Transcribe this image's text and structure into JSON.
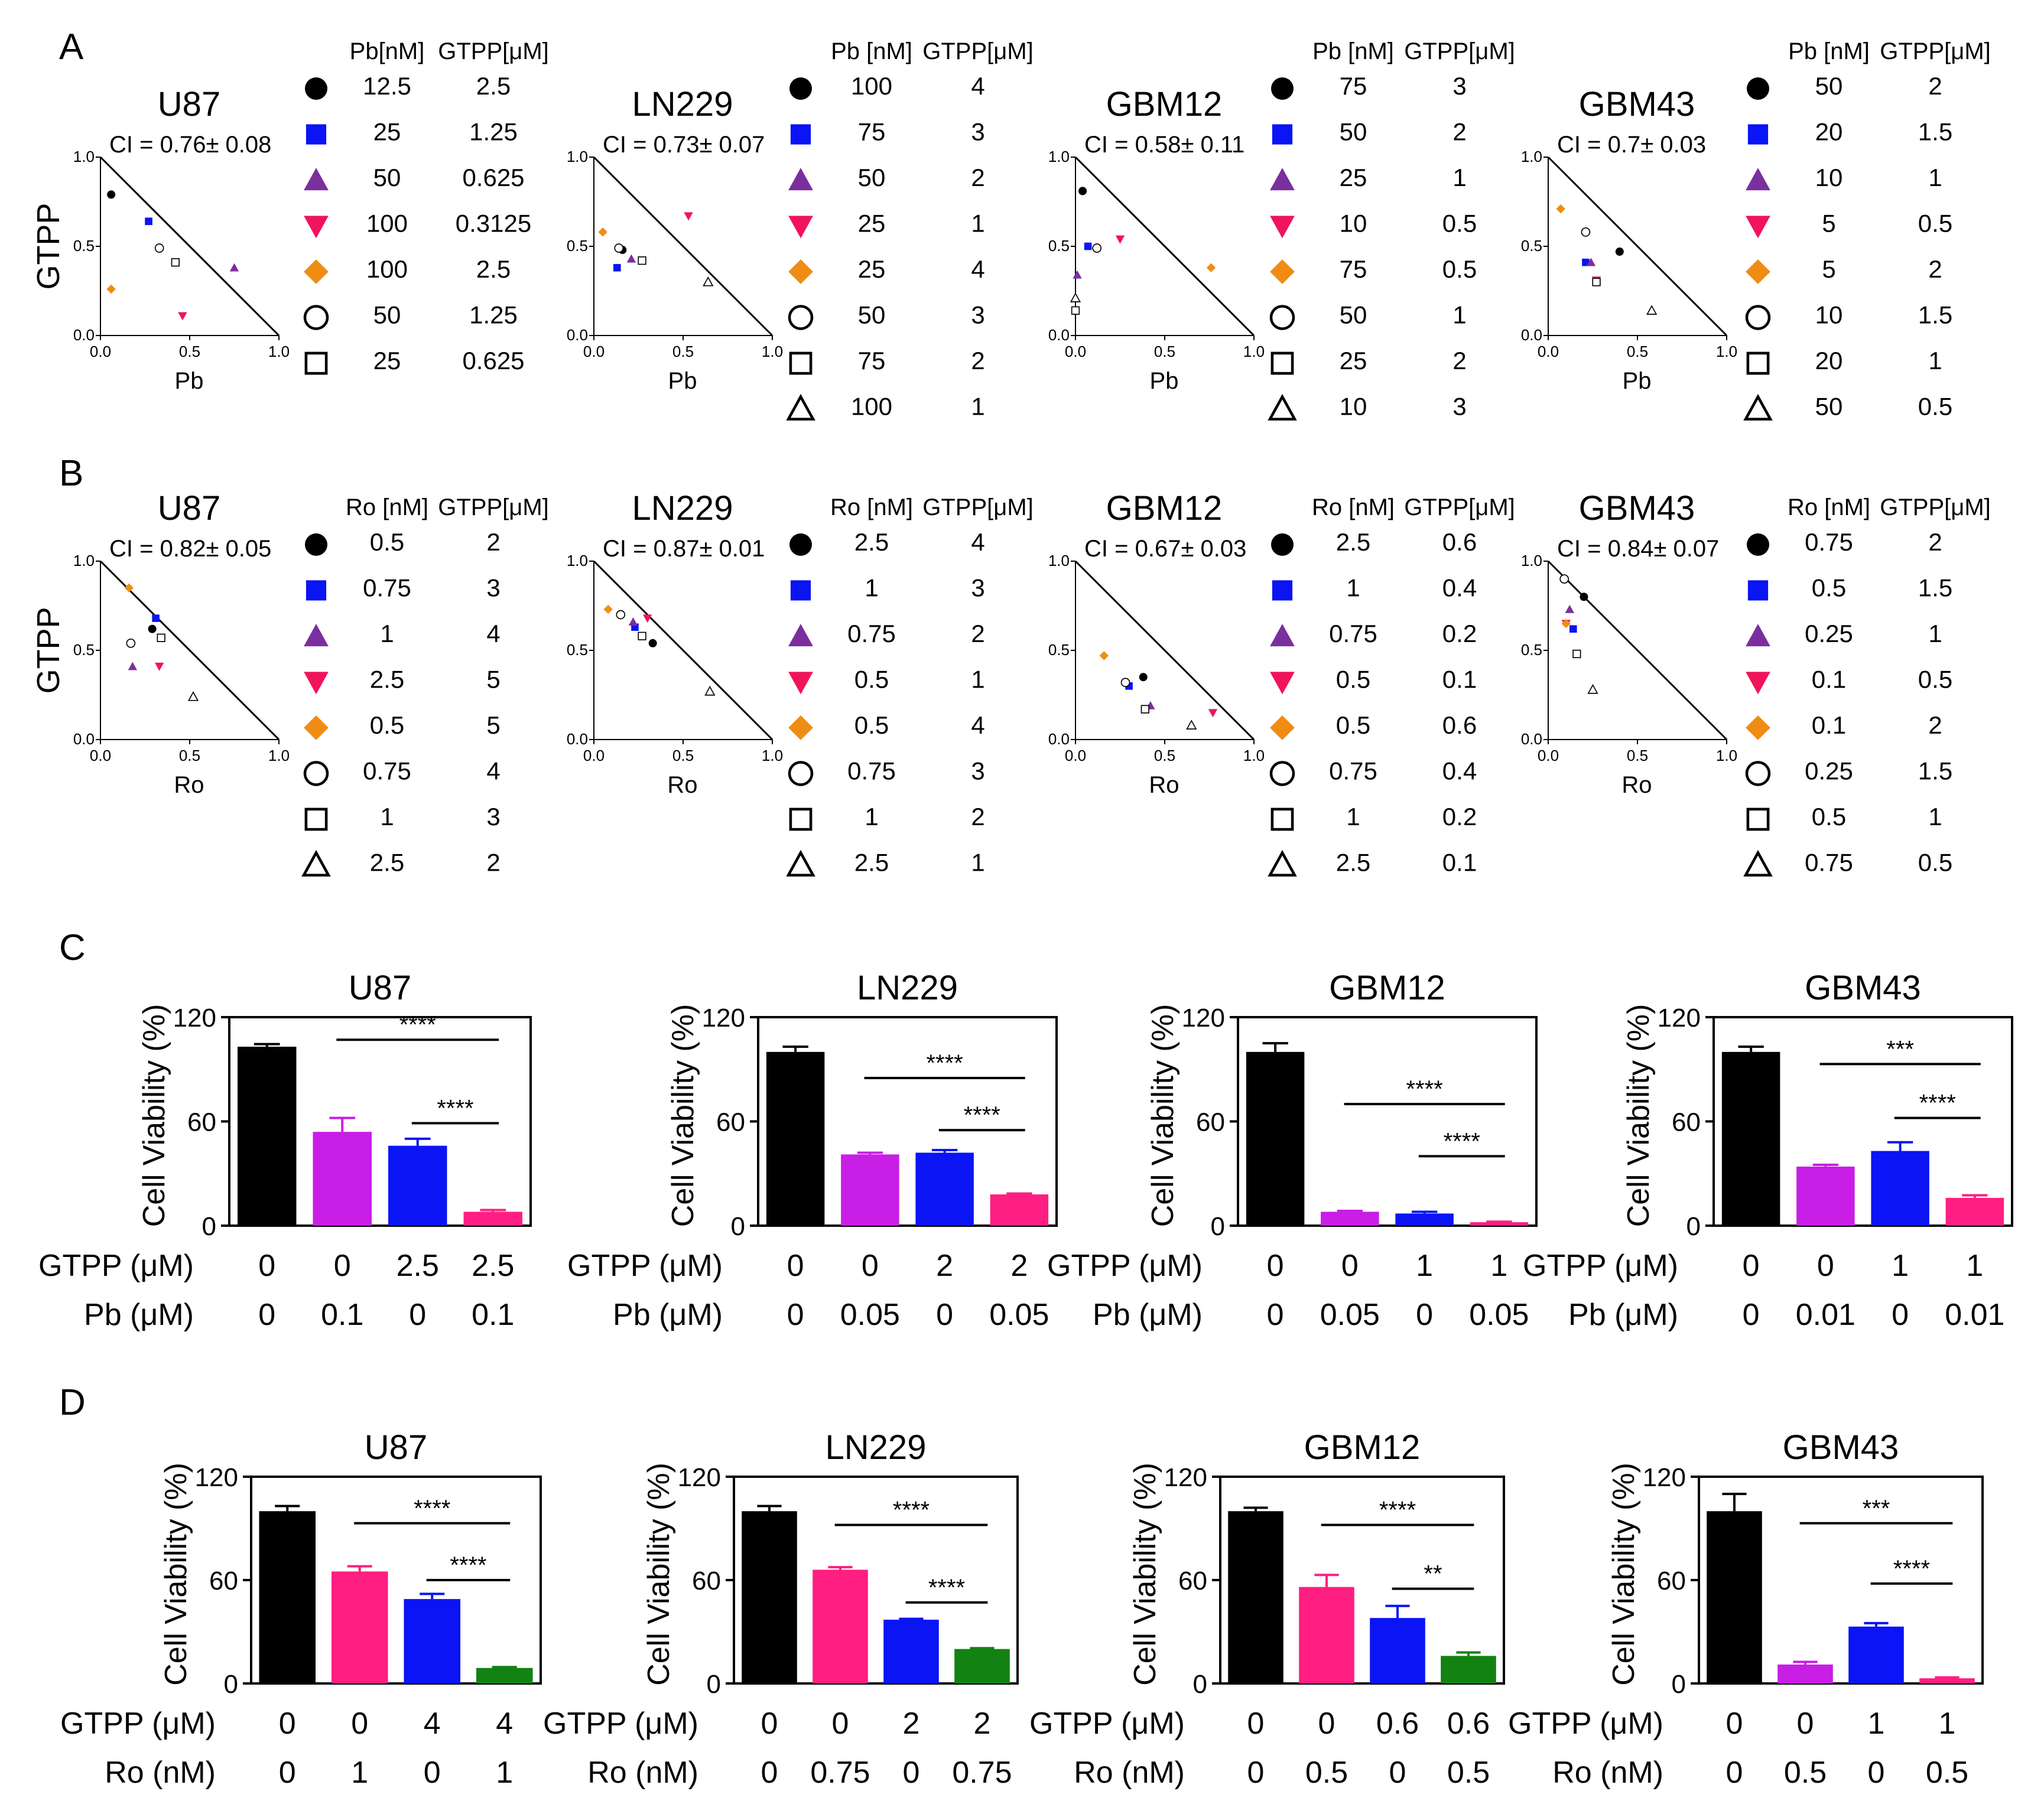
{
  "colors": {
    "black": "#000000",
    "blue": "#0a14f5",
    "purple": "#7b2f9e",
    "red": "#f0145a",
    "orange": "#f08c14",
    "magenta": "#c81ee6",
    "pink": "#ff1e82",
    "green": "#128212",
    "axis": "#000000"
  },
  "panels": {
    "A": "A",
    "B": "B",
    "C": "C",
    "D": "D"
  },
  "iso_axes": {
    "ticks": [
      "0.0",
      "0.5",
      "1.0"
    ],
    "ylabel": "GTPP",
    "xlabel_pb": "Pb",
    "xlabel_ro": "Ro"
  },
  "table_headers": {
    "pb_styles": [
      "Pb[nM]",
      "Pb [nM]",
      "Pb [nM]",
      "Pb [nM]"
    ],
    "ro": "Ro [nM]",
    "gtpp": "GTPP[μM]"
  },
  "marker_order": [
    "circle-filled",
    "square-filled",
    "triangle-up-filled",
    "triangle-down-filled",
    "diamond-filled",
    "circle-open",
    "square-open",
    "triangle-open"
  ],
  "chart_data": [
    {
      "type": "scatter",
      "panel": "A",
      "title": "U87",
      "ci": "CI = 0.76± 0.08",
      "xlabel": "Pb",
      "ylabel": "GTPP",
      "xlim": [
        0,
        1
      ],
      "ylim": [
        0,
        1
      ],
      "table": {
        "d1": [
          "12.5",
          "25",
          "50",
          "100",
          "100",
          "50",
          "25"
        ],
        "d2": [
          "2.5",
          "1.25",
          "0.625",
          "0.3125",
          "2.5",
          "1.25",
          "0.625"
        ]
      },
      "points": [
        [
          0.06,
          0.79
        ],
        [
          0.27,
          0.64
        ],
        [
          0.75,
          0.38
        ],
        [
          0.46,
          0.11
        ],
        [
          0.06,
          0.26
        ],
        [
          0.33,
          0.49
        ],
        [
          0.42,
          0.41
        ]
      ]
    },
    {
      "type": "scatter",
      "panel": "A",
      "title": "LN229",
      "ci": "CI = 0.73± 0.07",
      "xlabel": "Pb",
      "ylabel": "GTPP",
      "xlim": [
        0,
        1
      ],
      "ylim": [
        0,
        1
      ],
      "table": {
        "d1": [
          "100",
          "75",
          "50",
          "25",
          "25",
          "50",
          "75",
          "100"
        ],
        "d2": [
          "4",
          "3",
          "2",
          "1",
          "4",
          "3",
          "2",
          "1"
        ]
      },
      "points": [
        [
          0.16,
          0.48
        ],
        [
          0.13,
          0.38
        ],
        [
          0.21,
          0.43
        ],
        [
          0.53,
          0.67
        ],
        [
          0.05,
          0.58
        ],
        [
          0.14,
          0.49
        ],
        [
          0.27,
          0.42
        ],
        [
          0.64,
          0.3
        ]
      ]
    },
    {
      "type": "scatter",
      "panel": "A",
      "title": "GBM12",
      "ci": "CI = 0.58± 0.11",
      "xlabel": "Pb",
      "ylabel": "GTPP",
      "xlim": [
        0,
        1
      ],
      "ylim": [
        0,
        1
      ],
      "table": {
        "d1": [
          "75",
          "50",
          "25",
          "10",
          "75",
          "50",
          "25",
          "10"
        ],
        "d2": [
          "3",
          "2",
          "1",
          "0.5",
          "0.5",
          "1",
          "2",
          "3"
        ]
      },
      "points": [
        [
          0.04,
          0.81
        ],
        [
          0.07,
          0.5
        ],
        [
          0.01,
          0.34
        ],
        [
          0.25,
          0.54
        ],
        [
          0.76,
          0.38
        ],
        [
          0.12,
          0.49
        ],
        [
          0.0,
          0.14
        ],
        [
          0.0,
          0.21
        ]
      ]
    },
    {
      "type": "scatter",
      "panel": "A",
      "title": "GBM43",
      "ci": "CI = 0.7± 0.03",
      "xlabel": "Pb",
      "ylabel": "GTPP",
      "xlim": [
        0,
        1
      ],
      "ylim": [
        0,
        1
      ],
      "table": {
        "d1": [
          "50",
          "20",
          "10",
          "5",
          "5",
          "10",
          "20",
          "50"
        ],
        "d2": [
          "2",
          "1.5",
          "1",
          "0.5",
          "2",
          "1.5",
          "1",
          "0.5"
        ]
      },
      "points": [
        [
          0.4,
          0.47
        ],
        [
          0.21,
          0.41
        ],
        [
          0.24,
          0.41
        ],
        [
          0.27,
          0.31
        ],
        [
          0.07,
          0.71
        ],
        [
          0.21,
          0.58
        ],
        [
          0.27,
          0.3
        ],
        [
          0.58,
          0.14
        ]
      ]
    },
    {
      "type": "scatter",
      "panel": "B",
      "title": "U87",
      "ci": "CI = 0.82± 0.05",
      "xlabel": "Ro",
      "ylabel": "GTPP",
      "xlim": [
        0,
        1
      ],
      "ylim": [
        0,
        1
      ],
      "table": {
        "d1": [
          "0.5",
          "0.75",
          "1",
          "2.5",
          "0.5",
          "0.75",
          "1",
          "2.5"
        ],
        "d2": [
          "2",
          "3",
          "4",
          "5",
          "5",
          "4",
          "3",
          "2"
        ]
      },
      "points": [
        [
          0.29,
          0.62
        ],
        [
          0.31,
          0.68
        ],
        [
          0.18,
          0.41
        ],
        [
          0.33,
          0.41
        ],
        [
          0.16,
          0.85
        ],
        [
          0.17,
          0.54
        ],
        [
          0.34,
          0.57
        ],
        [
          0.52,
          0.24
        ]
      ]
    },
    {
      "type": "scatter",
      "panel": "B",
      "title": "LN229",
      "ci": "CI = 0.87± 0.01",
      "xlabel": "Ro",
      "ylabel": "GTPP",
      "xlim": [
        0,
        1
      ],
      "ylim": [
        0,
        1
      ],
      "table": {
        "d1": [
          "2.5",
          "1",
          "0.75",
          "0.5",
          "0.5",
          "0.75",
          "1",
          "2.5"
        ],
        "d2": [
          "4",
          "3",
          "2",
          "1",
          "4",
          "3",
          "2",
          "1"
        ]
      },
      "points": [
        [
          0.33,
          0.54
        ],
        [
          0.23,
          0.63
        ],
        [
          0.22,
          0.66
        ],
        [
          0.3,
          0.68
        ],
        [
          0.08,
          0.73
        ],
        [
          0.15,
          0.7
        ],
        [
          0.27,
          0.58
        ],
        [
          0.65,
          0.27
        ]
      ]
    },
    {
      "type": "scatter",
      "panel": "B",
      "title": "GBM12",
      "ci": "CI = 0.67± 0.03",
      "xlabel": "Ro",
      "ylabel": "GTPP",
      "xlim": [
        0,
        1
      ],
      "ylim": [
        0,
        1
      ],
      "table": {
        "d1": [
          "2.5",
          "1",
          "0.75",
          "0.5",
          "0.5",
          "0.75",
          "1",
          "2.5"
        ],
        "d2": [
          "0.6",
          "0.4",
          "0.2",
          "0.1",
          "0.6",
          "0.4",
          "0.2",
          "0.1"
        ]
      },
      "points": [
        [
          0.38,
          0.35
        ],
        [
          0.3,
          0.3
        ],
        [
          0.42,
          0.19
        ],
        [
          0.77,
          0.15
        ],
        [
          0.16,
          0.47
        ],
        [
          0.28,
          0.32
        ],
        [
          0.39,
          0.17
        ],
        [
          0.65,
          0.08
        ]
      ]
    },
    {
      "type": "scatter",
      "panel": "B",
      "title": "GBM43",
      "ci": "CI = 0.84± 0.07",
      "xlabel": "Ro",
      "ylabel": "GTPP",
      "xlim": [
        0,
        1
      ],
      "ylim": [
        0,
        1
      ],
      "table": {
        "d1": [
          "0.75",
          "0.5",
          "0.25",
          "0.1",
          "0.1",
          "0.25",
          "0.5",
          "0.75"
        ],
        "d2": [
          "2",
          "1.5",
          "1",
          "0.5",
          "2",
          "1.5",
          "1",
          "0.5"
        ]
      },
      "points": [
        [
          0.2,
          0.8
        ],
        [
          0.14,
          0.62
        ],
        [
          0.12,
          0.73
        ],
        [
          0.1,
          0.65
        ],
        [
          0.1,
          0.65
        ],
        [
          0.09,
          0.9
        ],
        [
          0.16,
          0.48
        ],
        [
          0.25,
          0.28
        ]
      ]
    },
    {
      "type": "bar",
      "panel": "C",
      "title": "U87",
      "ylabel": "Cell Viability (%)",
      "ylim": [
        0,
        120
      ],
      "yticks": [
        "0",
        "60",
        "120"
      ],
      "values": [
        103,
        54,
        46,
        8
      ],
      "errors": [
        1.5,
        8,
        4,
        1
      ],
      "colors": [
        "black",
        "magenta",
        "blue",
        "pink"
      ],
      "row1_label": "GTPP (μM)",
      "row1": [
        "0",
        "0",
        "2.5",
        "2.5"
      ],
      "row2_label": "Pb (μM)",
      "row2": [
        "0",
        "0.1",
        "0",
        "0.1"
      ],
      "sig": [
        {
          "from": 1,
          "to": 3,
          "label": "****",
          "y": 107
        },
        {
          "from": 2,
          "to": 3,
          "label": "****",
          "y": 59
        }
      ]
    },
    {
      "type": "bar",
      "panel": "C",
      "title": "LN229",
      "ylabel": "Cell Viability (%)",
      "ylim": [
        0,
        120
      ],
      "yticks": [
        "0",
        "60",
        "120"
      ],
      "values": [
        100,
        41,
        42,
        18
      ],
      "errors": [
        3,
        1,
        1.5,
        0.5
      ],
      "colors": [
        "black",
        "magenta",
        "blue",
        "pink"
      ],
      "row1_label": "GTPP (μM)",
      "row1": [
        "0",
        "0",
        "2",
        "2"
      ],
      "row2_label": "Pb (μM)",
      "row2": [
        "0",
        "0.05",
        "0",
        "0.05"
      ],
      "sig": [
        {
          "from": 1,
          "to": 3,
          "label": "****",
          "y": 85
        },
        {
          "from": 2,
          "to": 3,
          "label": "****",
          "y": 55
        }
      ]
    },
    {
      "type": "bar",
      "panel": "C",
      "title": "GBM12",
      "ylabel": "Cell Viability (%)",
      "ylim": [
        0,
        120
      ],
      "yticks": [
        "0",
        "60",
        "120"
      ],
      "values": [
        100,
        8,
        7,
        2
      ],
      "errors": [
        5,
        0.5,
        1,
        0.3
      ],
      "colors": [
        "black",
        "magenta",
        "blue",
        "pink"
      ],
      "row1_label": "GTPP (μM)",
      "row1": [
        "0",
        "0",
        "1",
        "1"
      ],
      "row2_label": "Pb (μM)",
      "row2": [
        "0",
        "0.05",
        "0",
        "0.05"
      ],
      "sig": [
        {
          "from": 1,
          "to": 3,
          "label": "****",
          "y": 70
        },
        {
          "from": 2,
          "to": 3,
          "label": "****",
          "y": 40
        }
      ]
    },
    {
      "type": "bar",
      "panel": "C",
      "title": "GBM43",
      "ylabel": "Cell Viability (%)",
      "ylim": [
        0,
        120
      ],
      "yticks": [
        "0",
        "60",
        "120"
      ],
      "values": [
        100,
        34,
        43,
        16
      ],
      "errors": [
        3,
        1,
        5,
        1.5
      ],
      "colors": [
        "black",
        "magenta",
        "blue",
        "pink"
      ],
      "row1_label": "GTPP (μM)",
      "row1": [
        "0",
        "0",
        "1",
        "1"
      ],
      "row2_label": "Pb (μM)",
      "row2": [
        "0",
        "0.01",
        "0",
        "0.01"
      ],
      "sig": [
        {
          "from": 1,
          "to": 3,
          "label": "***",
          "y": 93
        },
        {
          "from": 2,
          "to": 3,
          "label": "****",
          "y": 62
        }
      ]
    },
    {
      "type": "bar",
      "panel": "D",
      "title": "U87",
      "ylabel": "Cell Viability (%)",
      "ylim": [
        0,
        120
      ],
      "yticks": [
        "0",
        "60",
        "120"
      ],
      "values": [
        100,
        65,
        49,
        9
      ],
      "errors": [
        3,
        3,
        3,
        0.5
      ],
      "colors": [
        "black",
        "pink",
        "blue",
        "green"
      ],
      "row1_label": "GTPP (μM)",
      "row1": [
        "0",
        "0",
        "4",
        "4"
      ],
      "row2_label": "Ro (nM)",
      "row2": [
        "0",
        "1",
        "0",
        "1"
      ],
      "sig": [
        {
          "from": 1,
          "to": 3,
          "label": "****",
          "y": 93
        },
        {
          "from": 2,
          "to": 3,
          "label": "****",
          "y": 60
        }
      ]
    },
    {
      "type": "bar",
      "panel": "D",
      "title": "LN229",
      "ylabel": "Cell Viability (%)",
      "ylim": [
        0,
        120
      ],
      "yticks": [
        "0",
        "60",
        "120"
      ],
      "values": [
        100,
        66,
        37,
        20
      ],
      "errors": [
        3,
        1.5,
        0.5,
        0.5
      ],
      "colors": [
        "black",
        "pink",
        "blue",
        "green"
      ],
      "row1_label": "GTPP (μM)",
      "row1": [
        "0",
        "0",
        "2",
        "2"
      ],
      "row2_label": "Ro (nM)",
      "row2": [
        "0",
        "0.75",
        "0",
        "0.75"
      ],
      "sig": [
        {
          "from": 1,
          "to": 3,
          "label": "****",
          "y": 92
        },
        {
          "from": 2,
          "to": 3,
          "label": "****",
          "y": 47
        }
      ]
    },
    {
      "type": "bar",
      "panel": "D",
      "title": "GBM12",
      "ylabel": "Cell Viability (%)",
      "ylim": [
        0,
        120
      ],
      "yticks": [
        "0",
        "60",
        "120"
      ],
      "values": [
        100,
        56,
        38,
        16
      ],
      "errors": [
        2,
        7,
        7,
        2
      ],
      "colors": [
        "black",
        "pink",
        "blue",
        "green"
      ],
      "row1_label": "GTPP (μM)",
      "row1": [
        "0",
        "0",
        "0.6",
        "0.6"
      ],
      "row2_label": "Ro (nM)",
      "row2": [
        "0",
        "0.5",
        "0",
        "0.5"
      ],
      "sig": [
        {
          "from": 1,
          "to": 3,
          "label": "****",
          "y": 92
        },
        {
          "from": 2,
          "to": 3,
          "label": "**",
          "y": 55
        }
      ]
    },
    {
      "type": "bar",
      "panel": "D",
      "title": "GBM43",
      "ylabel": "Cell Viability (%)",
      "ylim": [
        0,
        120
      ],
      "yticks": [
        "0",
        "60",
        "120"
      ],
      "values": [
        100,
        11,
        33,
        3
      ],
      "errors": [
        10,
        1.5,
        2,
        0.5
      ],
      "colors": [
        "black",
        "magenta",
        "blue",
        "pink"
      ],
      "row1_label": "GTPP (μM)",
      "row1": [
        "0",
        "0",
        "1",
        "1"
      ],
      "row2_label": "Ro (nM)",
      "row2": [
        "0",
        "0.5",
        "0",
        "0.5"
      ],
      "sig": [
        {
          "from": 1,
          "to": 3,
          "label": "***",
          "y": 93
        },
        {
          "from": 2,
          "to": 3,
          "label": "****",
          "y": 58
        }
      ]
    }
  ]
}
